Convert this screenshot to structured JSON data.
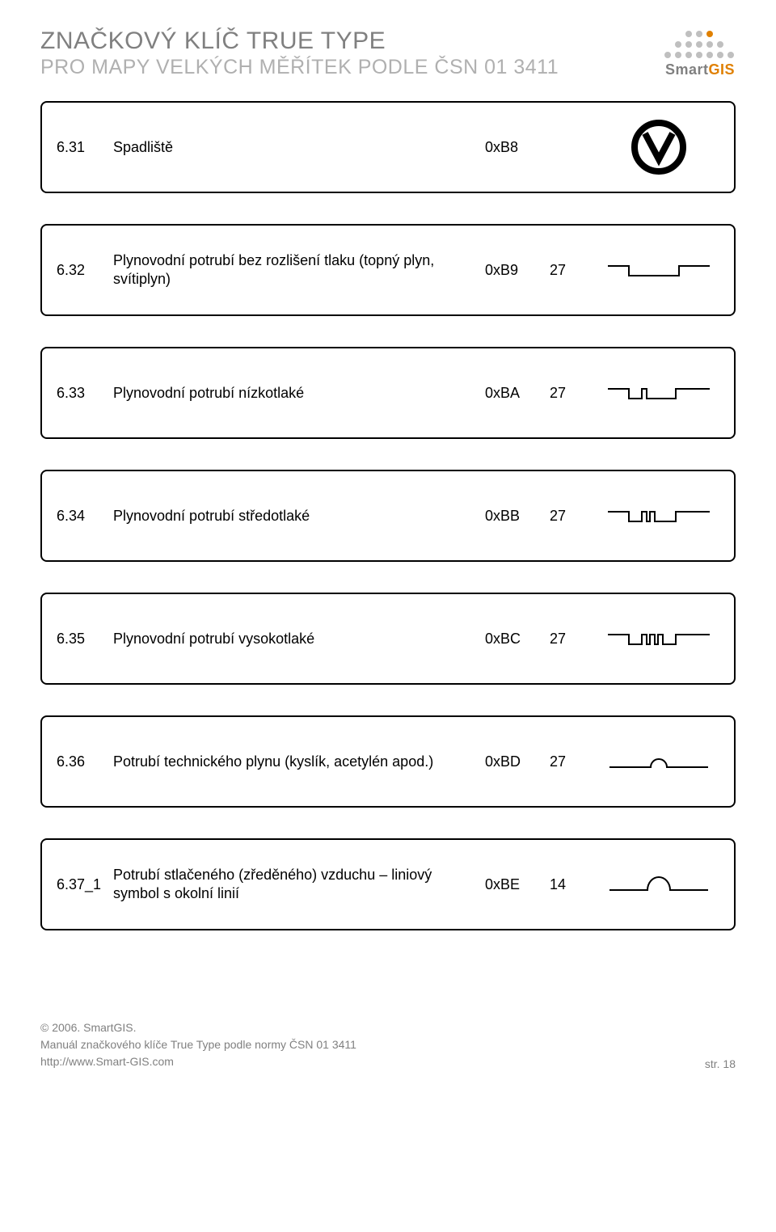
{
  "header": {
    "title_line1": "ZNAČKOVÝ KLÍČ TRUE TYPE",
    "title_line2": "PRO MAPY VELKÝCH MĚŘÍTEK PODLE ČSN 01 3411",
    "logo_text_smart": "Smart",
    "logo_text_gis": "GIS",
    "logo_dot_gray": "#bfbfbf",
    "logo_dot_orange": "#e08000"
  },
  "rows": [
    {
      "num": "6.31",
      "desc": "Spadliště",
      "code": "0xB8",
      "val": "",
      "symbol": "circle-v"
    },
    {
      "num": "6.32",
      "desc": "Plynovodní potrubí bez rozlišení tlaku (topný plyn, svítiplyn)",
      "code": "0xB9",
      "val": "27",
      "symbol": "gas-0"
    },
    {
      "num": "6.33",
      "desc": "Plynovodní potrubí nízkotlaké",
      "code": "0xBA",
      "val": "27",
      "symbol": "gas-1"
    },
    {
      "num": "6.34",
      "desc": "Plynovodní potrubí středotlaké",
      "code": "0xBB",
      "val": "27",
      "symbol": "gas-2"
    },
    {
      "num": "6.35",
      "desc": "Plynovodní potrubí vysokotlaké",
      "code": "0xBC",
      "val": "27",
      "symbol": "gas-3"
    },
    {
      "num": "6.36",
      "desc": "Potrubí technického plynu (kyslík, acetylén apod.)",
      "code": "0xBD",
      "val": "27",
      "symbol": "arc-small"
    },
    {
      "num": "6.37_1",
      "desc": "Potrubí stlačeného (zředěného) vzduchu – liniový symbol s okolní linií",
      "code": "0xBE",
      "val": "14",
      "symbol": "arc-tall"
    }
  ],
  "footer": {
    "copyright": "© 2006. SmartGIS.",
    "manual": "Manuál značkového klíče True Type podle normy ČSN 01 3411",
    "url": "http://www.Smart-GIS.com",
    "page": "str. 18"
  },
  "style": {
    "border_color": "#000000",
    "text_gray": "#808080",
    "text_light_gray": "#b0b0b0",
    "background": "#ffffff"
  }
}
